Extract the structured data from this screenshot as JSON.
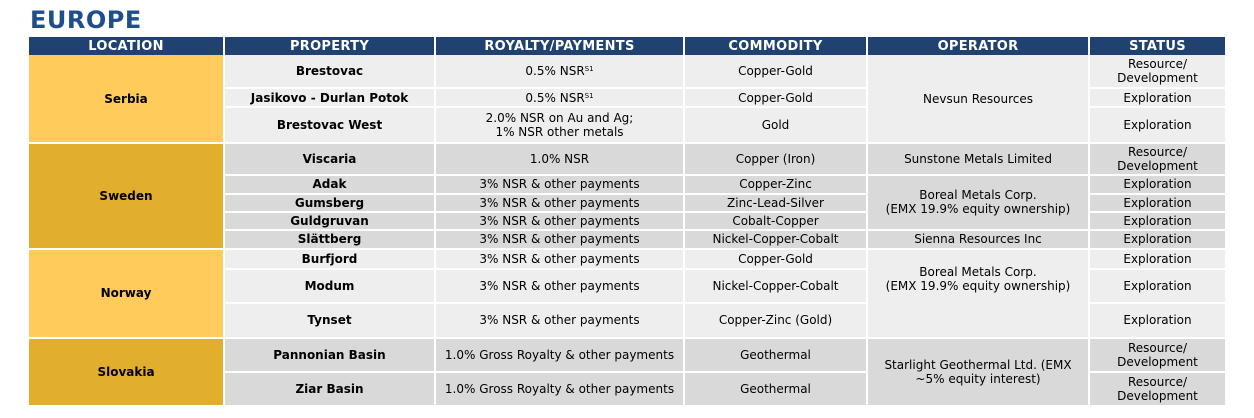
{
  "title": "EUROPE",
  "headers": {
    "location": "LOCATION",
    "property": "PROPERTY",
    "royalty": "ROYALTY/PAYMENTS",
    "commodity": "COMMODITY",
    "operator": "OPERATOR",
    "status": "STATUS"
  },
  "serbia": {
    "location": "Serbia",
    "operator": "Nevsun Resources",
    "rows": [
      {
        "property": "Brestovac",
        "royalty": "0.5% NSR",
        "royalty_sup": "S1",
        "commodity": "Copper-Gold",
        "status_line1": "Resource/",
        "status_line2": "Development"
      },
      {
        "property": "Jasikovo - Durlan Potok",
        "royalty": "0.5% NSR",
        "royalty_sup": "S1",
        "commodity": "Copper-Gold",
        "status": "Exploration"
      },
      {
        "property": "Brestovac West",
        "royalty_line1": "2.0% NSR on Au and Ag;",
        "royalty_line2": "1% NSR other metals",
        "commodity": "Gold",
        "status": "Exploration"
      }
    ]
  },
  "sweden": {
    "location": "Sweden",
    "rows": [
      {
        "property": "Viscaria",
        "royalty": "1.0% NSR",
        "commodity": "Copper (Iron)",
        "operator": "Sunstone Metals Limited",
        "status_line1": "Resource/",
        "status_line2": "Development"
      },
      {
        "property": "Adak",
        "royalty": "3% NSR & other payments",
        "commodity": "Copper-Zinc",
        "status": "Exploration"
      },
      {
        "property": "Gumsberg",
        "royalty": "3% NSR & other payments",
        "commodity": "Zinc-Lead-Silver",
        "status": "Exploration"
      },
      {
        "property": "Guldgruvan",
        "royalty": "3% NSR & other payments",
        "commodity": "Cobalt-Copper",
        "status": "Exploration"
      },
      {
        "property": "Slättberg",
        "royalty": "3% NSR & other payments",
        "commodity": "Nickel-Copper-Cobalt",
        "operator": "Sienna Resources Inc",
        "status": "Exploration"
      }
    ],
    "boreal_line1": "Boreal Metals Corp.",
    "boreal_line2": "(EMX 19.9% equity ownership)"
  },
  "norway": {
    "location": "Norway",
    "operator_line1": "Boreal Metals Corp.",
    "operator_line2": "(EMX 19.9% equity ownership)",
    "rows": [
      {
        "property": "Burfjord",
        "royalty": "3% NSR & other payments",
        "commodity": "Copper-Gold",
        "status": "Exploration"
      },
      {
        "property": "Modum",
        "royalty": "3% NSR & other payments",
        "commodity": "Nickel-Copper-Cobalt",
        "status": "Exploration"
      },
      {
        "property": "Tynset",
        "royalty": "3% NSR & other payments",
        "commodity": "Copper-Zinc (Gold)",
        "status": "Exploration"
      }
    ]
  },
  "slovakia": {
    "location": "Slovakia",
    "operator_line1": "Starlight Geothermal Ltd. (EMX",
    "operator_line2": "~5% equity interest)",
    "rows": [
      {
        "property": "Pannonian Basin",
        "royalty": "1.0% Gross Royalty & other payments",
        "commodity": "Geothermal",
        "status_line1": "Resource/",
        "status_line2": "Development"
      },
      {
        "property": "Ziar Basin",
        "royalty": "1.0% Gross Royalty & other payments",
        "commodity": "Geothermal",
        "status_line1": "Resource/",
        "status_line2": "Development"
      }
    ]
  }
}
